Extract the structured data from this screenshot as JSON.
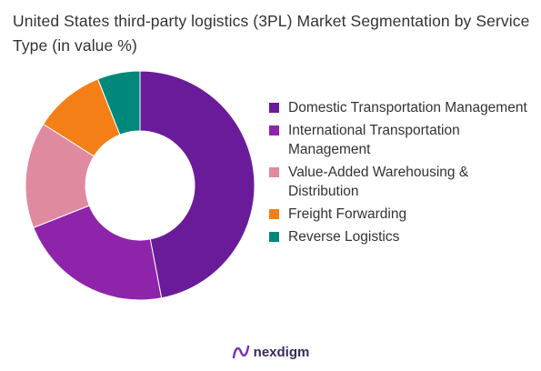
{
  "title": "United States third-party logistics (3PL) Market Segmentation by Service Type (in value %)",
  "brand": {
    "name": "nexdigm"
  },
  "chart_data": {
    "type": "pie",
    "variant": "donut",
    "legend_position": "right",
    "series": [
      {
        "name": "Domestic Transportation Management",
        "value": 47,
        "color": "#6a1b9a"
      },
      {
        "name": "International Transportation Management",
        "value": 22,
        "color": "#8e24aa"
      },
      {
        "name": "Value-Added Warehousing & Distribution",
        "value": 15,
        "color": "#e08aa0"
      },
      {
        "name": "Freight Forwarding",
        "value": 10,
        "color": "#f57f17"
      },
      {
        "name": "Reverse Logistics",
        "value": 6,
        "color": "#00897b"
      }
    ]
  }
}
